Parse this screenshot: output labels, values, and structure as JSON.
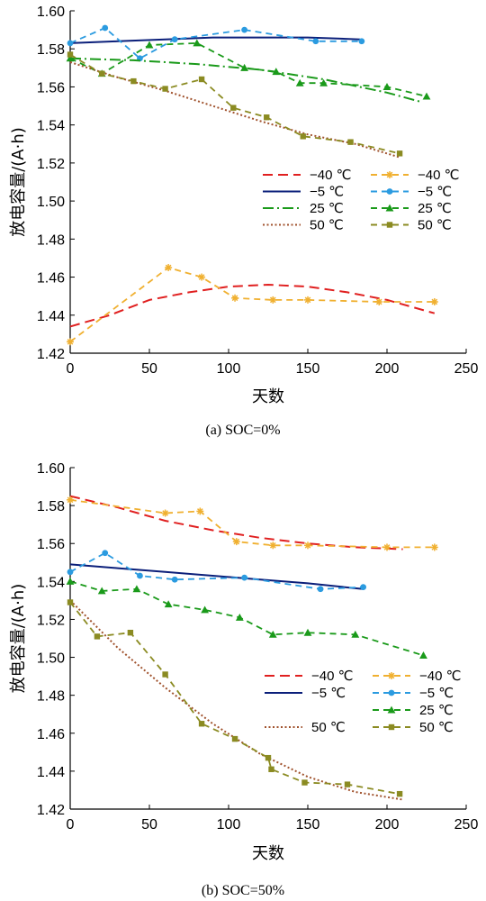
{
  "chart_data": [
    {
      "type": "line",
      "caption": "(a) SOC=0%",
      "xlabel": "天数",
      "ylabel": "放电容量/(A·h)",
      "xlim": [
        0,
        250
      ],
      "ylim": [
        1.42,
        1.6
      ],
      "xticks": [
        "0",
        "50",
        "100",
        "150",
        "200",
        "250"
      ],
      "yticks": [
        "1.42",
        "1.44",
        "1.46",
        "1.48",
        "1.50",
        "1.52",
        "1.54",
        "1.56",
        "1.58",
        "1.60"
      ],
      "legend": {
        "placement": "right-middle",
        "columns": 2
      },
      "series": [
        {
          "name": "−40 ℃",
          "style": "fit",
          "color": "#e02020",
          "dash": "long-dash",
          "marker": "none",
          "x": [
            0,
            25,
            50,
            75,
            100,
            125,
            150,
            175,
            200,
            230
          ],
          "y": [
            1.434,
            1.44,
            1.448,
            1.452,
            1.455,
            1.456,
            1.455,
            1.452,
            1.448,
            1.441
          ]
        },
        {
          "name": "−40 ℃",
          "style": "data",
          "color": "#f0b030",
          "dash": "dash",
          "marker": "asterisk",
          "x": [
            0,
            62,
            83,
            104,
            128,
            150,
            195,
            230
          ],
          "y": [
            1.426,
            1.465,
            1.46,
            1.449,
            1.448,
            1.448,
            1.447,
            1.447
          ]
        },
        {
          "name": "−5 ℃",
          "style": "fit",
          "color": "#0b1f7a",
          "dash": "solid",
          "marker": "none",
          "x": [
            0,
            30,
            60,
            90,
            120,
            150,
            183
          ],
          "y": [
            1.583,
            1.584,
            1.585,
            1.586,
            1.586,
            1.586,
            1.585
          ]
        },
        {
          "name": "−5 ℃",
          "style": "data",
          "color": "#2b9be0",
          "dash": "dash",
          "marker": "circle",
          "x": [
            0,
            22,
            44,
            66,
            110,
            155,
            184
          ],
          "y": [
            1.583,
            1.591,
            1.575,
            1.585,
            1.59,
            1.584,
            1.584
          ]
        },
        {
          "name": "25 ℃",
          "style": "fit",
          "color": "#1a9a1a",
          "dash": "dash-dot",
          "marker": "none",
          "x": [
            0,
            40,
            80,
            120,
            160,
            200,
            222
          ],
          "y": [
            1.575,
            1.574,
            1.572,
            1.569,
            1.564,
            1.557,
            1.552
          ]
        },
        {
          "name": "25 ℃",
          "style": "data",
          "color": "#1a9a1a",
          "dash": "dash",
          "marker": "triangle",
          "x": [
            0,
            20,
            50,
            80,
            110,
            130,
            145,
            160,
            200,
            225
          ],
          "y": [
            1.575,
            1.567,
            1.582,
            1.583,
            1.57,
            1.568,
            1.562,
            1.562,
            1.56,
            1.555
          ]
        },
        {
          "name": "50 ℃",
          "style": "fit",
          "color": "#a0522d",
          "dash": "dot",
          "marker": "none",
          "x": [
            0,
            30,
            60,
            90,
            120,
            150,
            180,
            208
          ],
          "y": [
            1.573,
            1.565,
            1.558,
            1.55,
            1.542,
            1.535,
            1.53,
            1.523
          ]
        },
        {
          "name": "50 ℃",
          "style": "data",
          "color": "#8b8b22",
          "dash": "dash",
          "marker": "square",
          "x": [
            0,
            20,
            40,
            60,
            83,
            103,
            124,
            147,
            177,
            208
          ],
          "y": [
            1.577,
            1.567,
            1.563,
            1.559,
            1.564,
            1.549,
            1.544,
            1.534,
            1.531,
            1.525
          ]
        }
      ]
    },
    {
      "type": "line",
      "caption": "(b) SOC=50%",
      "xlabel": "天数",
      "ylabel": "放电容量/(A·h)",
      "xlim": [
        0,
        250
      ],
      "ylim": [
        1.42,
        1.6
      ],
      "xticks": [
        "0",
        "50",
        "100",
        "150",
        "200",
        "250"
      ],
      "yticks": [
        "1.42",
        "1.44",
        "1.46",
        "1.48",
        "1.50",
        "1.52",
        "1.54",
        "1.56",
        "1.58",
        "1.60"
      ],
      "legend": {
        "placement": "bottom-right",
        "columns": 2
      },
      "series": [
        {
          "name": "−40 ℃",
          "style": "fit",
          "color": "#e02020",
          "dash": "long-dash",
          "marker": "none",
          "x": [
            0,
            30,
            60,
            90,
            120,
            150,
            180,
            210
          ],
          "y": [
            1.585,
            1.579,
            1.572,
            1.567,
            1.563,
            1.56,
            1.558,
            1.557
          ]
        },
        {
          "name": "−40 ℃",
          "style": "data",
          "color": "#f0b030",
          "dash": "dash",
          "marker": "asterisk",
          "x": [
            0,
            60,
            82,
            105,
            128,
            150,
            200,
            230
          ],
          "y": [
            1.583,
            1.576,
            1.577,
            1.561,
            1.559,
            1.559,
            1.558,
            1.558
          ]
        },
        {
          "name": "−5 ℃",
          "style": "fit",
          "color": "#0b1f7a",
          "dash": "solid",
          "marker": "none",
          "x": [
            0,
            30,
            60,
            90,
            120,
            150,
            185
          ],
          "y": [
            1.549,
            1.547,
            1.545,
            1.543,
            1.541,
            1.539,
            1.536
          ]
        },
        {
          "name": "−5 ℃",
          "style": "data",
          "color": "#2b9be0",
          "dash": "dash",
          "marker": "circle",
          "x": [
            0,
            22,
            44,
            66,
            110,
            158,
            185
          ],
          "y": [
            1.545,
            1.555,
            1.543,
            1.541,
            1.542,
            1.536,
            1.537
          ]
        },
        {
          "name": "25 ℃",
          "style": "data",
          "color": "#1a9a1a",
          "dash": "dash",
          "marker": "triangle",
          "x": [
            0,
            20,
            42,
            62,
            85,
            107,
            128,
            150,
            180,
            223
          ],
          "y": [
            1.54,
            1.535,
            1.536,
            1.528,
            1.525,
            1.521,
            1.512,
            1.513,
            1.512,
            1.501
          ]
        },
        {
          "name": "50 ℃",
          "style": "fit",
          "color": "#a0522d",
          "dash": "dot",
          "marker": "none",
          "x": [
            0,
            30,
            60,
            90,
            120,
            150,
            180,
            210
          ],
          "y": [
            1.53,
            1.505,
            1.484,
            1.465,
            1.449,
            1.437,
            1.429,
            1.425
          ]
        },
        {
          "name": "50 ℃",
          "style": "data",
          "color": "#8b8b22",
          "dash": "dash",
          "marker": "square",
          "x": [
            0,
            17,
            38,
            60,
            83,
            104,
            125,
            127,
            148,
            175,
            208
          ],
          "y": [
            1.529,
            1.511,
            1.513,
            1.491,
            1.465,
            1.457,
            1.447,
            1.441,
            1.434,
            1.433,
            1.428
          ]
        }
      ]
    }
  ]
}
